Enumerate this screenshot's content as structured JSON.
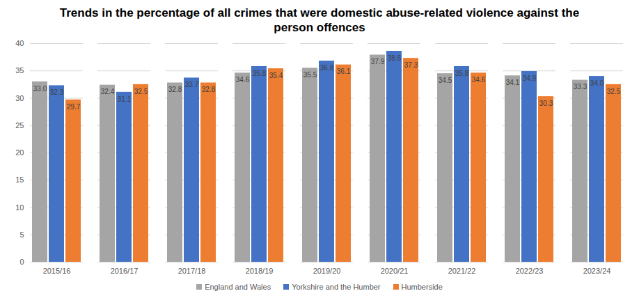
{
  "chart_data": {
    "type": "bar",
    "title": "Trends in the percentage of all crimes that were domestic abuse-related violence against the person offences",
    "categories": [
      "2015/16",
      "2016/17",
      "2017/18",
      "2018/19",
      "2019/20",
      "2020/21",
      "2021/22",
      "2022/23",
      "2023/24"
    ],
    "series": [
      {
        "name": "England and Wales",
        "color": "#a5a5a5",
        "values": [
          33.0,
          32.4,
          32.8,
          34.6,
          35.5,
          37.9,
          34.5,
          34.1,
          33.3
        ],
        "value_labels": [
          "33.0",
          "32.4",
          "32.8",
          "34.6",
          "35.5",
          "37.9",
          "34.5",
          "34.1",
          "33.3"
        ]
      },
      {
        "name": "Yorkshire and the Humber",
        "color": "#4472c4",
        "values": [
          32.3,
          31.1,
          33.7,
          35.8,
          36.8,
          38.6,
          35.8,
          34.9,
          34.0
        ],
        "value_labels": [
          "32.3",
          "31.1",
          "33.7",
          "35.8",
          "36.8",
          "38.6",
          "35.8",
          "34.9",
          "34.0"
        ]
      },
      {
        "name": "Humberside",
        "color": "#ed7d31",
        "values": [
          29.7,
          32.5,
          32.8,
          35.4,
          36.1,
          37.3,
          34.6,
          30.3,
          32.5
        ],
        "value_labels": [
          "29.7",
          "32.5",
          "32.8",
          "35.4",
          "36.1",
          "37.3",
          "34.6",
          "30.3",
          "32.5"
        ]
      }
    ],
    "ylim": [
      0,
      40
    ],
    "yticks": [
      0,
      5,
      10,
      15,
      20,
      25,
      30,
      35,
      40
    ],
    "grid": true,
    "data_labels": true,
    "legend": "bottom"
  }
}
